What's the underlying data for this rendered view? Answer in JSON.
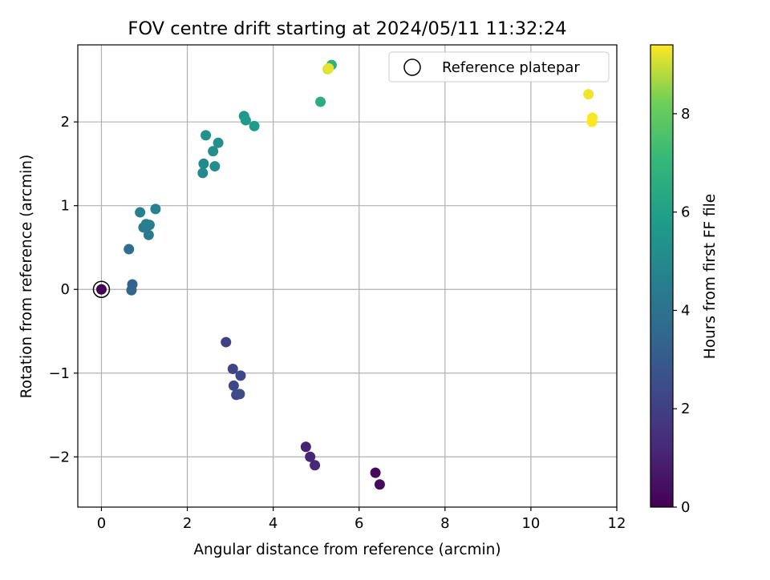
{
  "chart_data": {
    "type": "scatter",
    "title": "FOV centre drift starting at 2024/05/11 11:32:24",
    "xlabel": "Angular distance from reference (arcmin)",
    "ylabel": "Rotation from reference (arcmin)",
    "xlim": [
      -0.55,
      12
    ],
    "ylim": [
      -2.6,
      2.92
    ],
    "xticks": [
      "0",
      "2",
      "4",
      "6",
      "8",
      "10",
      "12"
    ],
    "yticks": [
      "−2",
      "−1",
      "0",
      "1",
      "2"
    ],
    "grid": true,
    "legend": {
      "placement": "top-right",
      "entries": [
        "Reference platepar"
      ]
    },
    "reference_point": {
      "x": 0,
      "y": 0
    },
    "colorbar": {
      "label": "Hours from first FF file",
      "range": [
        0,
        9.4
      ],
      "ticks": [
        "0",
        "2",
        "4",
        "6",
        "8"
      ],
      "colormap": "viridis"
    },
    "series": [
      {
        "points": [
          {
            "x": 0.0,
            "y": 0.0,
            "h": 0.0
          },
          {
            "x": 6.38,
            "y": -2.19,
            "h": 0.2
          },
          {
            "x": 6.48,
            "y": -2.33,
            "h": 0.3
          },
          {
            "x": 4.76,
            "y": -1.88,
            "h": 1.0
          },
          {
            "x": 4.86,
            "y": -2.0,
            "h": 1.1
          },
          {
            "x": 4.97,
            "y": -2.1,
            "h": 1.2
          },
          {
            "x": 2.9,
            "y": -0.63,
            "h": 2.1
          },
          {
            "x": 3.06,
            "y": -0.95,
            "h": 2.2
          },
          {
            "x": 3.24,
            "y": -1.03,
            "h": 2.3
          },
          {
            "x": 3.08,
            "y": -1.15,
            "h": 2.3
          },
          {
            "x": 3.14,
            "y": -1.26,
            "h": 2.4
          },
          {
            "x": 3.22,
            "y": -1.25,
            "h": 2.5
          },
          {
            "x": 0.72,
            "y": 0.06,
            "h": 3.4
          },
          {
            "x": 0.7,
            "y": -0.01,
            "h": 3.5
          },
          {
            "x": 0.64,
            "y": 0.48,
            "h": 3.8
          },
          {
            "x": 1.1,
            "y": 0.65,
            "h": 4.3
          },
          {
            "x": 0.98,
            "y": 0.74,
            "h": 4.4
          },
          {
            "x": 1.04,
            "y": 0.78,
            "h": 4.5
          },
          {
            "x": 1.12,
            "y": 0.77,
            "h": 4.5
          },
          {
            "x": 0.9,
            "y": 0.92,
            "h": 4.6
          },
          {
            "x": 1.26,
            "y": 0.96,
            "h": 4.7
          },
          {
            "x": 2.36,
            "y": 1.39,
            "h": 5.0
          },
          {
            "x": 2.38,
            "y": 1.5,
            "h": 5.0
          },
          {
            "x": 2.64,
            "y": 1.47,
            "h": 5.1
          },
          {
            "x": 2.6,
            "y": 1.65,
            "h": 5.2
          },
          {
            "x": 2.72,
            "y": 1.75,
            "h": 5.3
          },
          {
            "x": 2.43,
            "y": 1.84,
            "h": 5.4
          },
          {
            "x": 3.32,
            "y": 2.07,
            "h": 5.6
          },
          {
            "x": 3.36,
            "y": 2.02,
            "h": 5.7
          },
          {
            "x": 3.56,
            "y": 1.95,
            "h": 5.8
          },
          {
            "x": 5.1,
            "y": 2.24,
            "h": 6.6
          },
          {
            "x": 5.36,
            "y": 2.68,
            "h": 6.8
          },
          {
            "x": 5.27,
            "y": 2.63,
            "h": 9.0
          },
          {
            "x": 5.29,
            "y": 2.64,
            "h": 9.2
          },
          {
            "x": 11.34,
            "y": 2.33,
            "h": 9.3
          },
          {
            "x": 11.43,
            "y": 2.05,
            "h": 9.35
          },
          {
            "x": 11.42,
            "y": 2.0,
            "h": 9.4
          }
        ]
      }
    ]
  }
}
